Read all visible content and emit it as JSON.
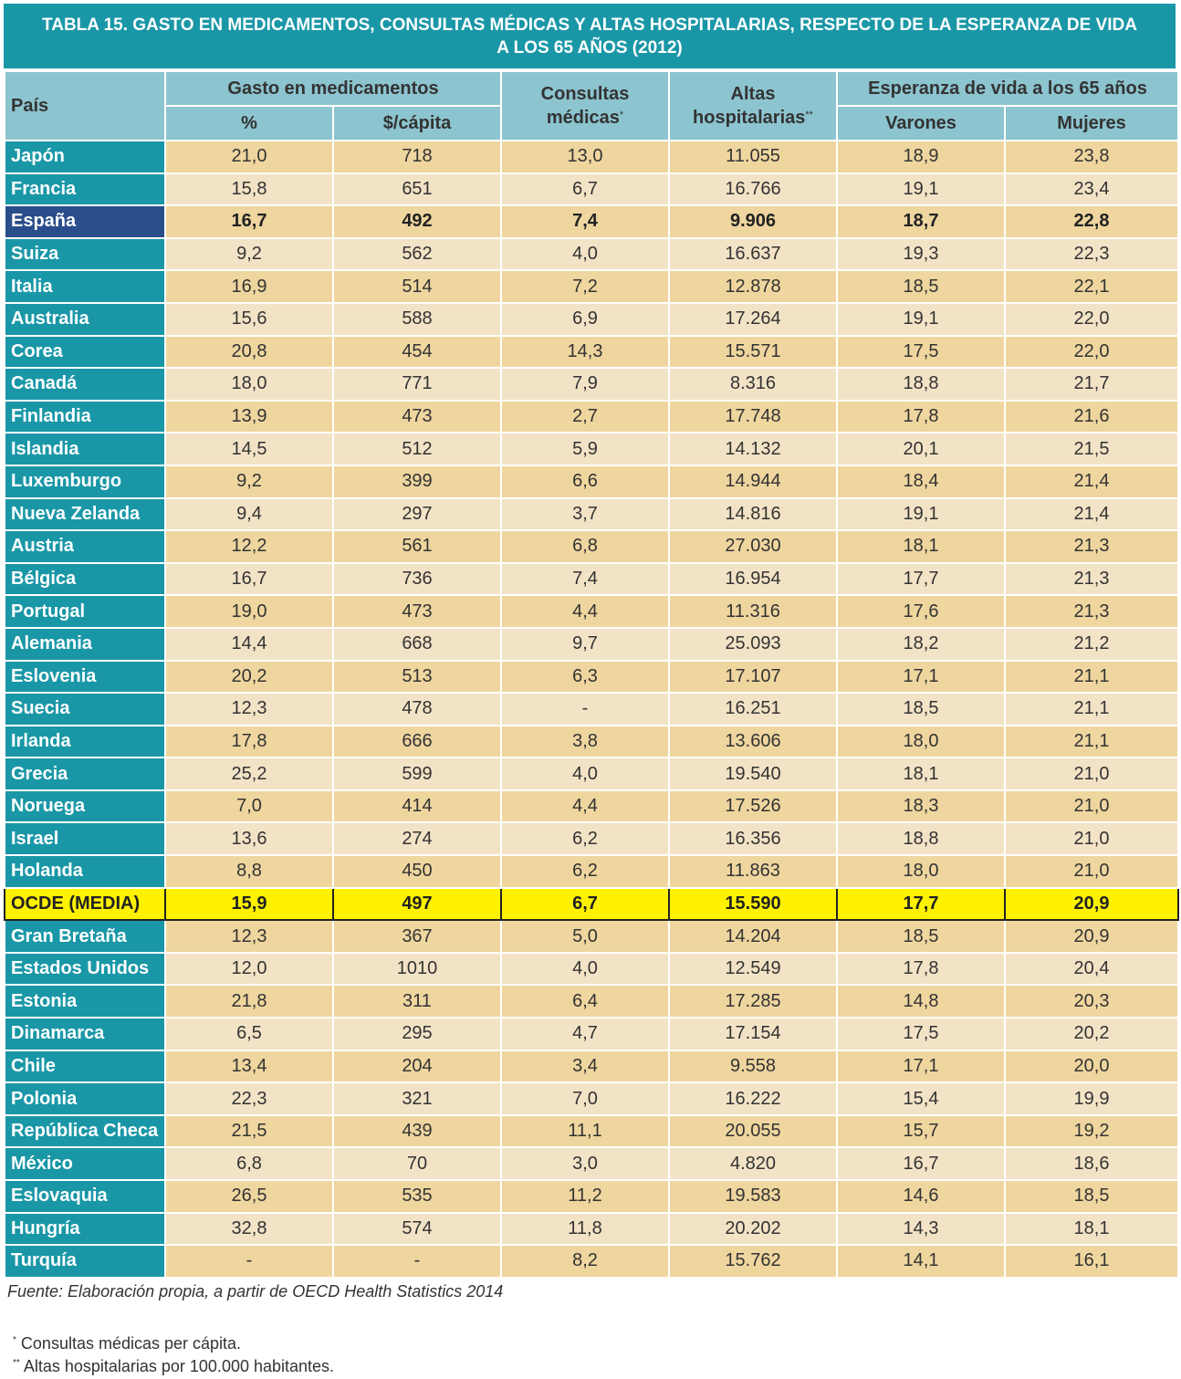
{
  "title": {
    "line1": "TABLA 15. GASTO EN MEDICAMENTOS, CONSULTAS MÉDICAS Y ALTAS HOSPITALARIAS, RESPECTO DE LA ESPERANZA DE VIDA",
    "line2": "A LOS 65 AÑOS (2012)"
  },
  "header": {
    "pais": "País",
    "gasto": "Gasto en medicamentos",
    "pct": "%",
    "per_capita": "$/cápita",
    "consultas_l1": "Consultas",
    "consultas_l2": "médicas",
    "consultas_mark": "*",
    "altas_l1": "Altas",
    "altas_l2": "hospitalarias",
    "altas_mark": "**",
    "esperanza": "Esperanza de vida a los 65 años",
    "varones": "Varones",
    "mujeres": "Mujeres"
  },
  "rows": [
    {
      "pais": "Japón",
      "pct": "21,0",
      "capita": "718",
      "consultas": "13,0",
      "altas": "11.055",
      "varones": "18,9",
      "mujeres": "23,8"
    },
    {
      "pais": "Francia",
      "pct": "15,8",
      "capita": "651",
      "consultas": "6,7",
      "altas": "16.766",
      "varones": "19,1",
      "mujeres": "23,4"
    },
    {
      "pais": "España",
      "pct": "16,7",
      "capita": "492",
      "consultas": "7,4",
      "altas": "9.906",
      "varones": "18,7",
      "mujeres": "22,8",
      "highlight": "spain"
    },
    {
      "pais": "Suiza",
      "pct": "9,2",
      "capita": "562",
      "consultas": "4,0",
      "altas": "16.637",
      "varones": "19,3",
      "mujeres": "22,3"
    },
    {
      "pais": "Italia",
      "pct": "16,9",
      "capita": "514",
      "consultas": "7,2",
      "altas": "12.878",
      "varones": "18,5",
      "mujeres": "22,1"
    },
    {
      "pais": "Australia",
      "pct": "15,6",
      "capita": "588",
      "consultas": "6,9",
      "altas": "17.264",
      "varones": "19,1",
      "mujeres": "22,0"
    },
    {
      "pais": "Corea",
      "pct": "20,8",
      "capita": "454",
      "consultas": "14,3",
      "altas": "15.571",
      "varones": "17,5",
      "mujeres": "22,0"
    },
    {
      "pais": "Canadá",
      "pct": "18,0",
      "capita": "771",
      "consultas": "7,9",
      "altas": "8.316",
      "varones": "18,8",
      "mujeres": "21,7"
    },
    {
      "pais": "Finlandia",
      "pct": "13,9",
      "capita": "473",
      "consultas": "2,7",
      "altas": "17.748",
      "varones": "17,8",
      "mujeres": "21,6"
    },
    {
      "pais": "Islandia",
      "pct": "14,5",
      "capita": "512",
      "consultas": "5,9",
      "altas": "14.132",
      "varones": "20,1",
      "mujeres": "21,5"
    },
    {
      "pais": "Luxemburgo",
      "pct": "9,2",
      "capita": "399",
      "consultas": "6,6",
      "altas": "14.944",
      "varones": "18,4",
      "mujeres": "21,4"
    },
    {
      "pais": "Nueva Zelanda",
      "pct": "9,4",
      "capita": "297",
      "consultas": "3,7",
      "altas": "14.816",
      "varones": "19,1",
      "mujeres": "21,4"
    },
    {
      "pais": "Austria",
      "pct": "12,2",
      "capita": "561",
      "consultas": "6,8",
      "altas": "27.030",
      "varones": "18,1",
      "mujeres": "21,3"
    },
    {
      "pais": "Bélgica",
      "pct": "16,7",
      "capita": "736",
      "consultas": "7,4",
      "altas": "16.954",
      "varones": "17,7",
      "mujeres": "21,3"
    },
    {
      "pais": "Portugal",
      "pct": "19,0",
      "capita": "473",
      "consultas": "4,4",
      "altas": "11.316",
      "varones": "17,6",
      "mujeres": "21,3"
    },
    {
      "pais": "Alemania",
      "pct": "14,4",
      "capita": "668",
      "consultas": "9,7",
      "altas": "25.093",
      "varones": "18,2",
      "mujeres": "21,2"
    },
    {
      "pais": "Eslovenia",
      "pct": "20,2",
      "capita": "513",
      "consultas": "6,3",
      "altas": "17.107",
      "varones": "17,1",
      "mujeres": "21,1"
    },
    {
      "pais": "Suecia",
      "pct": "12,3",
      "capita": "478",
      "consultas": "-",
      "altas": "16.251",
      "varones": "18,5",
      "mujeres": "21,1"
    },
    {
      "pais": "Irlanda",
      "pct": "17,8",
      "capita": "666",
      "consultas": "3,8",
      "altas": "13.606",
      "varones": "18,0",
      "mujeres": "21,1"
    },
    {
      "pais": "Grecia",
      "pct": "25,2",
      "capita": "599",
      "consultas": "4,0",
      "altas": "19.540",
      "varones": "18,1",
      "mujeres": "21,0"
    },
    {
      "pais": "Noruega",
      "pct": "7,0",
      "capita": "414",
      "consultas": "4,4",
      "altas": "17.526",
      "varones": "18,3",
      "mujeres": "21,0"
    },
    {
      "pais": "Israel",
      "pct": "13,6",
      "capita": "274",
      "consultas": "6,2",
      "altas": "16.356",
      "varones": "18,8",
      "mujeres": "21,0"
    },
    {
      "pais": "Holanda",
      "pct": "8,8",
      "capita": "450",
      "consultas": "6,2",
      "altas": "11.863",
      "varones": "18,0",
      "mujeres": "21,0"
    },
    {
      "pais": "OCDE (MEDIA)",
      "pct": "15,9",
      "capita": "497",
      "consultas": "6,7",
      "altas": "15.590",
      "varones": "17,7",
      "mujeres": "20,9",
      "highlight": "ocde"
    },
    {
      "pais": "Gran Bretaña",
      "pct": "12,3",
      "capita": "367",
      "consultas": "5,0",
      "altas": "14.204",
      "varones": "18,5",
      "mujeres": "20,9"
    },
    {
      "pais": "Estados Unidos",
      "pct": "12,0",
      "capita": "1010",
      "consultas": "4,0",
      "altas": "12.549",
      "varones": "17,8",
      "mujeres": "20,4"
    },
    {
      "pais": "Estonia",
      "pct": "21,8",
      "capita": "311",
      "consultas": "6,4",
      "altas": "17.285",
      "varones": "14,8",
      "mujeres": "20,3"
    },
    {
      "pais": "Dinamarca",
      "pct": "6,5",
      "capita": "295",
      "consultas": "4,7",
      "altas": "17.154",
      "varones": "17,5",
      "mujeres": "20,2"
    },
    {
      "pais": "Chile",
      "pct": "13,4",
      "capita": "204",
      "consultas": "3,4",
      "altas": "9.558",
      "varones": "17,1",
      "mujeres": "20,0"
    },
    {
      "pais": "Polonia",
      "pct": "22,3",
      "capita": "321",
      "consultas": "7,0",
      "altas": "16.222",
      "varones": "15,4",
      "mujeres": "19,9"
    },
    {
      "pais": "República Checa",
      "pct": "21,5",
      "capita": "439",
      "consultas": "11,1",
      "altas": "20.055",
      "varones": "15,7",
      "mujeres": "19,2"
    },
    {
      "pais": "México",
      "pct": "6,8",
      "capita": "70",
      "consultas": "3,0",
      "altas": "4.820",
      "varones": "16,7",
      "mujeres": "18,6"
    },
    {
      "pais": "Eslovaquia",
      "pct": "26,5",
      "capita": "535",
      "consultas": "11,2",
      "altas": "19.583",
      "varones": "14,6",
      "mujeres": "18,5"
    },
    {
      "pais": "Hungría",
      "pct": "32,8",
      "capita": "574",
      "consultas": "11,8",
      "altas": "20.202",
      "varones": "14,3",
      "mujeres": "18,1"
    },
    {
      "pais": "Turquía",
      "pct": "-",
      "capita": "-",
      "consultas": "8,2",
      "altas": "15.762",
      "varones": "14,1",
      "mujeres": "16,1"
    }
  ],
  "colors": {
    "header_teal": "#1a97a7",
    "subheader_blue": "#8cc4cf",
    "row_tan": "#efd69f",
    "row_light": "#f3e3c6",
    "spain_blue": "#2a4d8b",
    "ocde_yellow": "#fff200"
  },
  "source": "Fuente: Elaboración propia, a partir de OECD Health Statistics 2014",
  "notes": [
    {
      "mark": "*",
      "text": "Consultas médicas per cápita."
    },
    {
      "mark": "**",
      "text": "Altas hospitalarias por 100.000 habitantes."
    }
  ]
}
